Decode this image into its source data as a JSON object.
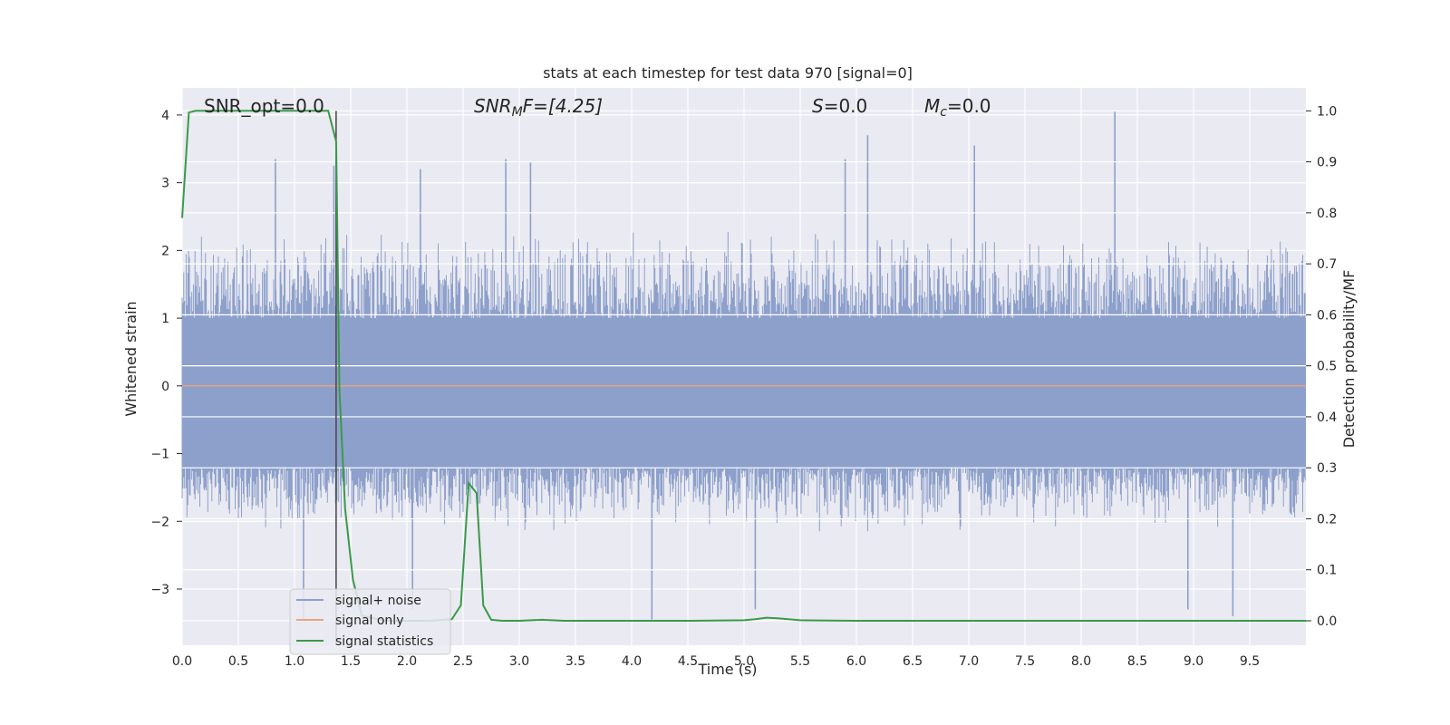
{
  "chart_data": {
    "type": "line",
    "title": "stats at each timestep for test data 970 [signal=0]",
    "xlabel": "Time (s)",
    "ylabel": "Whitened strain",
    "y2label": "Detection probability/MF",
    "xlim": [
      0.0,
      10.0
    ],
    "ylim": [
      -3.83,
      4.4
    ],
    "y2lim": [
      -0.048,
      1.045
    ],
    "x_ticks": [
      "0.0",
      "0.5",
      "1.0",
      "1.5",
      "2.0",
      "2.5",
      "3.0",
      "3.5",
      "4.0",
      "4.5",
      "5.0",
      "5.5",
      "6.0",
      "6.5",
      "7.0",
      "7.5",
      "8.0",
      "8.5",
      "9.0",
      "9.5"
    ],
    "y_ticks": [
      "4",
      "3",
      "2",
      "1",
      "0",
      "−1",
      "−2",
      "−3"
    ],
    "y2_ticks": [
      "1.0",
      "0.9",
      "0.8",
      "0.7",
      "0.6",
      "0.5",
      "0.4",
      "0.3",
      "0.2",
      "0.1",
      "0.0"
    ],
    "grid": true,
    "legend_position": "bottom-left",
    "annotations": {
      "snr_opt": "SNR_opt=0.0",
      "snr_mf_prefix": "SNR",
      "snr_mf_sub": "M",
      "snr_mf_rest": "F=[4.25]",
      "s_prefix": "S",
      "s_rest": "=0.0",
      "mc_prefix": "M",
      "mc_sub": "c",
      "mc_rest": "=0.0"
    },
    "vline_x": 1.37,
    "series": [
      {
        "name": "signal+ noise",
        "color": "#8da0cb",
        "axis": "left",
        "kind": "noise",
        "envelope_typical": [
          -2.0,
          2.2
        ],
        "spikes": [
          {
            "x": 0.83,
            "y": 3.35
          },
          {
            "x": 1.35,
            "y": 3.25
          },
          {
            "x": 2.12,
            "y": 3.2
          },
          {
            "x": 2.88,
            "y": 3.35
          },
          {
            "x": 3.1,
            "y": 3.3
          },
          {
            "x": 5.9,
            "y": 3.35
          },
          {
            "x": 6.1,
            "y": 3.7
          },
          {
            "x": 7.05,
            "y": 3.55
          },
          {
            "x": 8.3,
            "y": 4.05
          },
          {
            "x": 4.18,
            "y": -3.45
          },
          {
            "x": 5.1,
            "y": -3.3
          },
          {
            "x": 9.35,
            "y": -3.4
          },
          {
            "x": 8.95,
            "y": -3.3
          },
          {
            "x": 1.08,
            "y": -3.45
          },
          {
            "x": 2.05,
            "y": -3.3
          }
        ]
      },
      {
        "name": "signal only",
        "color": "#e8a27f",
        "axis": "left",
        "x": [
          0.0,
          10.0
        ],
        "y": [
          0.0,
          0.0
        ]
      },
      {
        "name": "signal statistics",
        "color": "#3a9a4a",
        "axis": "right",
        "x": [
          0.0,
          0.06,
          0.12,
          0.2,
          0.4,
          0.8,
          1.2,
          1.3,
          1.37,
          1.4,
          1.45,
          1.52,
          1.6,
          1.8,
          2.0,
          2.2,
          2.4,
          2.48,
          2.55,
          2.62,
          2.68,
          2.75,
          2.85,
          3.0,
          3.2,
          3.4,
          3.6,
          4.0,
          4.5,
          5.0,
          5.1,
          5.2,
          5.3,
          5.5,
          6.0,
          7.0,
          8.0,
          9.0,
          10.0
        ],
        "y": [
          0.79,
          0.997,
          1.0,
          1.0,
          1.0,
          1.0,
          1.0,
          1.0,
          0.94,
          0.45,
          0.22,
          0.08,
          0.01,
          0.0,
          0.0,
          0.0,
          0.003,
          0.03,
          0.27,
          0.25,
          0.03,
          0.002,
          0.0,
          0.0,
          0.002,
          0.0,
          0.0,
          0.0,
          0.0,
          0.001,
          0.003,
          0.006,
          0.005,
          0.001,
          0.0,
          0.0,
          0.0,
          0.0,
          0.0
        ]
      }
    ]
  }
}
